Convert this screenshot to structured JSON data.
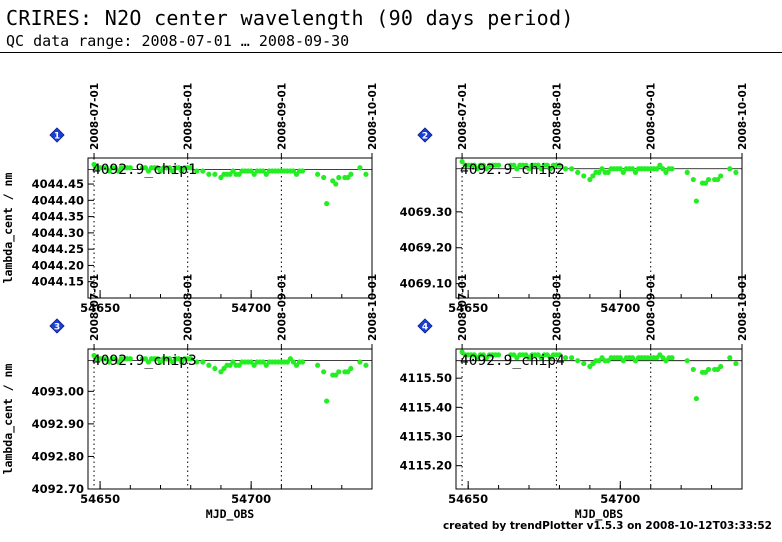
{
  "header": {
    "title": "CRIRES: N2O center wavelength (90 days period)",
    "subtitle": "QC data range: 2008-07-01 … 2008-09-30"
  },
  "footer": {
    "credit": "created by trendPlotter v1.5.3 on 2008-10-12T03:33:52"
  },
  "chart_data": [
    {
      "type": "scatter",
      "badge": "1",
      "label": "4092.9_chip1",
      "xlabel": "",
      "ylabel": "lambda_cent / nm",
      "xlim": [
        54646,
        54740
      ],
      "ylim": [
        4044.1,
        4044.53
      ],
      "x_ticks": [
        54650,
        54700
      ],
      "y_ticks": [
        4044.15,
        4044.2,
        4044.25,
        4044.3,
        4044.35,
        4044.4,
        4044.45
      ],
      "y_tick_labels": [
        "4044.15",
        "4044.20",
        "4044.25",
        "4044.30",
        "4044.35",
        "4044.40",
        "4044.45"
      ],
      "ref_line": 4044.495,
      "date_ticks": [
        {
          "label": "2008-07-01",
          "mjd": 54648
        },
        {
          "label": "2008-08-01",
          "mjd": 54679
        },
        {
          "label": "2008-09-01",
          "mjd": 54710
        },
        {
          "label": "2008-10-01",
          "mjd": 54740
        }
      ],
      "series": [
        {
          "color": "#22ee22",
          "x": [
            54648,
            54649,
            54650,
            54651,
            54652,
            54653,
            54654,
            54655,
            54656,
            54657,
            54658,
            54659,
            54660,
            54664,
            54665,
            54666,
            54667,
            54668,
            54669,
            54670,
            54671,
            54672,
            54673,
            54674,
            54675,
            54676,
            54677,
            54678,
            54679,
            54680,
            54682,
            54684,
            54686,
            54688,
            54690,
            54691,
            54692,
            54693,
            54694,
            54695,
            54696,
            54697,
            54698,
            54699,
            54700,
            54701,
            54702,
            54703,
            54704,
            54705,
            54706,
            54707,
            54708,
            54709,
            54710,
            54711,
            54712,
            54713,
            54714,
            54715,
            54716,
            54717,
            54722,
            54724,
            54725,
            54727,
            54728,
            54729,
            54731,
            54732,
            54733,
            54736,
            54738
          ],
          "y": [
            4044.51,
            4044.5,
            4044.5,
            4044.5,
            4044.5,
            4044.49,
            4044.5,
            4044.5,
            4044.49,
            4044.5,
            4044.5,
            4044.5,
            4044.5,
            4044.5,
            4044.5,
            4044.49,
            4044.5,
            4044.5,
            4044.5,
            4044.49,
            4044.5,
            4044.5,
            4044.5,
            4044.49,
            4044.5,
            4044.5,
            4044.49,
            4044.5,
            4044.5,
            4044.5,
            4044.49,
            4044.49,
            4044.48,
            4044.48,
            4044.47,
            4044.48,
            4044.48,
            4044.48,
            4044.49,
            4044.48,
            4044.48,
            4044.49,
            4044.49,
            4044.49,
            4044.49,
            4044.48,
            4044.49,
            4044.49,
            4044.49,
            4044.48,
            4044.49,
            4044.49,
            4044.49,
            4044.49,
            4044.49,
            4044.49,
            4044.49,
            4044.49,
            4044.49,
            4044.48,
            4044.49,
            4044.49,
            4044.48,
            4044.47,
            4044.39,
            4044.46,
            4044.45,
            4044.47,
            4044.47,
            4044.47,
            4044.48,
            4044.5,
            4044.48
          ]
        }
      ]
    },
    {
      "type": "scatter",
      "badge": "2",
      "label": "4092.9_chip2",
      "xlabel": "",
      "ylabel": "",
      "xlim": [
        54646,
        54740
      ],
      "ylim": [
        4069.06,
        4069.45
      ],
      "x_ticks": [
        54650,
        54700
      ],
      "y_ticks": [
        4069.1,
        4069.2,
        4069.3
      ],
      "y_tick_labels": [
        "4069.10",
        "4069.20",
        "4069.30"
      ],
      "ref_line": 4069.42,
      "date_ticks": [
        {
          "label": "2008-07-01",
          "mjd": 54648
        },
        {
          "label": "2008-08-01",
          "mjd": 54679
        },
        {
          "label": "2008-09-01",
          "mjd": 54710
        },
        {
          "label": "2008-10-01",
          "mjd": 54740
        }
      ],
      "series": [
        {
          "color": "#22ee22",
          "x": [
            54648,
            54649,
            54650,
            54651,
            54652,
            54653,
            54654,
            54655,
            54656,
            54657,
            54658,
            54659,
            54660,
            54664,
            54665,
            54666,
            54667,
            54668,
            54669,
            54670,
            54671,
            54672,
            54673,
            54674,
            54675,
            54676,
            54677,
            54678,
            54679,
            54680,
            54682,
            54684,
            54686,
            54688,
            54690,
            54691,
            54692,
            54693,
            54694,
            54695,
            54696,
            54697,
            54698,
            54699,
            54700,
            54701,
            54702,
            54703,
            54704,
            54705,
            54706,
            54707,
            54708,
            54709,
            54710,
            54711,
            54712,
            54713,
            54714,
            54715,
            54716,
            54717,
            54722,
            54724,
            54725,
            54727,
            54728,
            54729,
            54731,
            54732,
            54733,
            54736,
            54738
          ],
          "y": [
            4069.44,
            4069.43,
            4069.43,
            4069.43,
            4069.43,
            4069.42,
            4069.43,
            4069.43,
            4069.42,
            4069.43,
            4069.43,
            4069.43,
            4069.43,
            4069.43,
            4069.43,
            4069.42,
            4069.43,
            4069.43,
            4069.43,
            4069.42,
            4069.43,
            4069.43,
            4069.43,
            4069.42,
            4069.43,
            4069.43,
            4069.42,
            4069.43,
            4069.43,
            4069.43,
            4069.42,
            4069.42,
            4069.41,
            4069.4,
            4069.39,
            4069.4,
            4069.41,
            4069.41,
            4069.42,
            4069.41,
            4069.41,
            4069.42,
            4069.42,
            4069.42,
            4069.42,
            4069.41,
            4069.42,
            4069.42,
            4069.42,
            4069.41,
            4069.42,
            4069.42,
            4069.42,
            4069.42,
            4069.42,
            4069.42,
            4069.42,
            4069.43,
            4069.42,
            4069.41,
            4069.42,
            4069.42,
            4069.41,
            4069.39,
            4069.33,
            4069.38,
            4069.38,
            4069.39,
            4069.39,
            4069.39,
            4069.4,
            4069.42,
            4069.41
          ]
        }
      ]
    },
    {
      "type": "scatter",
      "badge": "3",
      "label": "4092.9_chip3",
      "xlabel": "MJD_OBS",
      "ylabel": "lambda_cent / nm",
      "xlim": [
        54646,
        54740
      ],
      "ylim": [
        4092.7,
        4093.13
      ],
      "x_ticks": [
        54650,
        54700
      ],
      "y_ticks": [
        4092.7,
        4092.8,
        4092.9,
        4093.0
      ],
      "y_tick_labels": [
        "4092.70",
        "4092.80",
        "4092.90",
        "4093.00"
      ],
      "ref_line": 4093.095,
      "date_ticks": [
        {
          "label": "2008-07-01",
          "mjd": 54648
        },
        {
          "label": "2008-08-01",
          "mjd": 54679
        },
        {
          "label": "2008-09-01",
          "mjd": 54710
        },
        {
          "label": "2008-10-01",
          "mjd": 54740
        }
      ],
      "series": [
        {
          "color": "#22ee22",
          "x": [
            54648,
            54649,
            54650,
            54651,
            54652,
            54653,
            54654,
            54655,
            54656,
            54657,
            54658,
            54659,
            54660,
            54664,
            54665,
            54666,
            54667,
            54668,
            54669,
            54670,
            54671,
            54672,
            54673,
            54674,
            54675,
            54676,
            54677,
            54678,
            54679,
            54680,
            54682,
            54684,
            54686,
            54688,
            54690,
            54691,
            54692,
            54693,
            54694,
            54695,
            54696,
            54697,
            54698,
            54699,
            54700,
            54701,
            54702,
            54703,
            54704,
            54705,
            54706,
            54707,
            54708,
            54709,
            54710,
            54711,
            54712,
            54713,
            54714,
            54715,
            54716,
            54717,
            54722,
            54724,
            54725,
            54727,
            54728,
            54729,
            54731,
            54732,
            54733,
            54736,
            54738
          ],
          "y": [
            4093.11,
            4093.1,
            4093.1,
            4093.1,
            4093.1,
            4093.09,
            4093.1,
            4093.1,
            4093.09,
            4093.1,
            4093.1,
            4093.1,
            4093.1,
            4093.1,
            4093.1,
            4093.09,
            4093.1,
            4093.1,
            4093.1,
            4093.09,
            4093.1,
            4093.1,
            4093.1,
            4093.09,
            4093.1,
            4093.1,
            4093.09,
            4093.1,
            4093.1,
            4093.1,
            4093.09,
            4093.09,
            4093.08,
            4093.07,
            4093.06,
            4093.07,
            4093.08,
            4093.08,
            4093.09,
            4093.08,
            4093.08,
            4093.09,
            4093.09,
            4093.09,
            4093.09,
            4093.08,
            4093.09,
            4093.09,
            4093.09,
            4093.08,
            4093.09,
            4093.09,
            4093.09,
            4093.09,
            4093.09,
            4093.09,
            4093.09,
            4093.1,
            4093.09,
            4093.08,
            4093.09,
            4093.09,
            4093.08,
            4093.06,
            4092.97,
            4093.05,
            4093.05,
            4093.06,
            4093.06,
            4093.06,
            4093.07,
            4093.09,
            4093.08
          ]
        }
      ]
    },
    {
      "type": "scatter",
      "badge": "4",
      "label": "4092.9_chip4",
      "xlabel": "MJD_OBS",
      "ylabel": "",
      "xlim": [
        54646,
        54740
      ],
      "ylim": [
        4115.12,
        4115.6
      ],
      "x_ticks": [
        54650,
        54700
      ],
      "y_ticks": [
        4115.2,
        4115.3,
        4115.4,
        4115.5
      ],
      "y_tick_labels": [
        "4115.20",
        "4115.30",
        "4115.40",
        "4115.50"
      ],
      "ref_line": 4115.56,
      "date_ticks": [
        {
          "label": "2008-07-01",
          "mjd": 54648
        },
        {
          "label": "2008-08-01",
          "mjd": 54679
        },
        {
          "label": "2008-09-01",
          "mjd": 54710
        },
        {
          "label": "2008-10-01",
          "mjd": 54740
        }
      ],
      "series": [
        {
          "color": "#22ee22",
          "x": [
            54648,
            54649,
            54650,
            54651,
            54652,
            54653,
            54654,
            54655,
            54656,
            54657,
            54658,
            54659,
            54660,
            54664,
            54665,
            54666,
            54667,
            54668,
            54669,
            54670,
            54671,
            54672,
            54673,
            54674,
            54675,
            54676,
            54677,
            54678,
            54679,
            54680,
            54682,
            54684,
            54686,
            54688,
            54690,
            54691,
            54692,
            54693,
            54694,
            54695,
            54696,
            54697,
            54698,
            54699,
            54700,
            54701,
            54702,
            54703,
            54704,
            54705,
            54706,
            54707,
            54708,
            54709,
            54710,
            54711,
            54712,
            54713,
            54714,
            54715,
            54716,
            54717,
            54722,
            54724,
            54725,
            54727,
            54728,
            54729,
            54731,
            54732,
            54733,
            54736,
            54738
          ],
          "y": [
            4115.59,
            4115.58,
            4115.58,
            4115.58,
            4115.58,
            4115.57,
            4115.58,
            4115.58,
            4115.57,
            4115.58,
            4115.58,
            4115.58,
            4115.58,
            4115.58,
            4115.58,
            4115.57,
            4115.58,
            4115.58,
            4115.58,
            4115.57,
            4115.58,
            4115.58,
            4115.58,
            4115.57,
            4115.58,
            4115.58,
            4115.57,
            4115.58,
            4115.58,
            4115.58,
            4115.57,
            4115.57,
            4115.56,
            4115.55,
            4115.54,
            4115.55,
            4115.56,
            4115.56,
            4115.57,
            4115.56,
            4115.56,
            4115.57,
            4115.57,
            4115.57,
            4115.57,
            4115.56,
            4115.57,
            4115.57,
            4115.57,
            4115.56,
            4115.57,
            4115.57,
            4115.57,
            4115.57,
            4115.57,
            4115.57,
            4115.57,
            4115.58,
            4115.57,
            4115.56,
            4115.57,
            4115.57,
            4115.56,
            4115.53,
            4115.43,
            4115.52,
            4115.52,
            4115.53,
            4115.53,
            4115.53,
            4115.54,
            4115.57,
            4115.55
          ]
        }
      ]
    }
  ]
}
